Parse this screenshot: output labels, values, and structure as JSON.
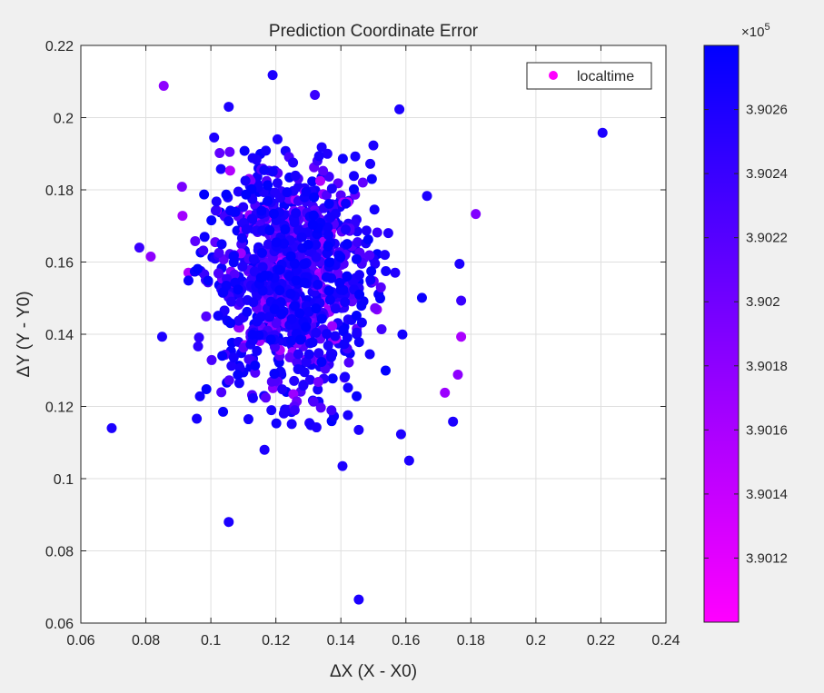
{
  "chart_data": {
    "type": "scatter",
    "title": "Prediction Coordinate Error",
    "xlabel": "ΔX (X - X0)",
    "ylabel": "ΔY (Y - Y0)",
    "xlim": [
      0.06,
      0.24
    ],
    "ylim": [
      0.06,
      0.22
    ],
    "xticks": [
      0.06,
      0.08,
      0.1,
      0.12,
      0.14,
      0.16,
      0.18,
      0.2,
      0.22,
      0.24
    ],
    "yticks": [
      0.06,
      0.08,
      0.1,
      0.12,
      0.14,
      0.16,
      0.18,
      0.2,
      0.22
    ],
    "xtick_labels": [
      "0.06",
      "0.08",
      "0.1",
      "0.12",
      "0.14",
      "0.16",
      "0.18",
      "0.2",
      "0.22",
      "0.24"
    ],
    "ytick_labels": [
      "0.06",
      "0.08",
      "0.1",
      "0.12",
      "0.14",
      "0.16",
      "0.18",
      "0.2",
      "0.22"
    ],
    "grid": true,
    "legend": {
      "entries": [
        "localtime"
      ],
      "placement": "top-right"
    },
    "colorbar": {
      "multiplier_base": "×10",
      "multiplier_exp": "5",
      "clim": [
        3.901,
        3.9028
      ],
      "ticks": [
        3.9012,
        3.9014,
        3.9016,
        3.9018,
        3.902,
        3.9022,
        3.9024,
        3.9026
      ],
      "tick_labels": [
        "3.9012",
        "3.9014",
        "3.9016",
        "3.9018",
        "3.902",
        "3.9022",
        "3.9024",
        "3.9026"
      ],
      "colormap": [
        "#ff00ff",
        "#0000ff"
      ]
    },
    "outlier_points": [
      {
        "x": 0.0695,
        "y": 0.114,
        "c": 3.9026
      },
      {
        "x": 0.0855,
        "y": 0.2088,
        "c": 3.9018
      },
      {
        "x": 0.119,
        "y": 0.2118,
        "c": 3.9026
      },
      {
        "x": 0.2205,
        "y": 0.1958,
        "c": 3.9026
      },
      {
        "x": 0.1055,
        "y": 0.088,
        "c": 3.9026
      },
      {
        "x": 0.1455,
        "y": 0.0665,
        "c": 3.9026
      },
      {
        "x": 0.1405,
        "y": 0.1035,
        "c": 3.9026
      },
      {
        "x": 0.161,
        "y": 0.105,
        "c": 3.9026
      },
      {
        "x": 0.1815,
        "y": 0.1733,
        "c": 3.9019
      },
      {
        "x": 0.132,
        "y": 0.2063,
        "c": 3.9024
      },
      {
        "x": 0.1055,
        "y": 0.203,
        "c": 3.9026
      },
      {
        "x": 0.158,
        "y": 0.2023,
        "c": 3.9026
      },
      {
        "x": 0.078,
        "y": 0.164,
        "c": 3.9024
      },
      {
        "x": 0.0815,
        "y": 0.1615,
        "c": 3.9018
      },
      {
        "x": 0.085,
        "y": 0.1393,
        "c": 3.9026
      },
      {
        "x": 0.1165,
        "y": 0.108,
        "c": 3.9026
      },
      {
        "x": 0.177,
        "y": 0.1393,
        "c": 3.9016
      },
      {
        "x": 0.176,
        "y": 0.1288,
        "c": 3.9018
      },
      {
        "x": 0.172,
        "y": 0.1238,
        "c": 3.9017
      },
      {
        "x": 0.1745,
        "y": 0.1158,
        "c": 3.9026
      },
      {
        "x": 0.1585,
        "y": 0.1123,
        "c": 3.9026
      },
      {
        "x": 0.1455,
        "y": 0.1135,
        "c": 3.9026
      },
      {
        "x": 0.1325,
        "y": 0.1142,
        "c": 3.9026
      },
      {
        "x": 0.101,
        "y": 0.1945,
        "c": 3.9026
      },
      {
        "x": 0.1205,
        "y": 0.194,
        "c": 3.9026
      },
      {
        "x": 0.15,
        "y": 0.1923,
        "c": 3.9026
      },
      {
        "x": 0.177,
        "y": 0.1493,
        "c": 3.9024
      },
      {
        "x": 0.1765,
        "y": 0.1595,
        "c": 3.9026
      },
      {
        "x": 0.1665,
        "y": 0.1783,
        "c": 3.9026
      }
    ],
    "cluster": {
      "description_values": "dense cluster",
      "center": [
        0.124,
        0.156
      ],
      "sd": [
        0.0125,
        0.0155
      ],
      "count": 1100,
      "c_range": [
        3.9012,
        3.9028
      ]
    }
  }
}
